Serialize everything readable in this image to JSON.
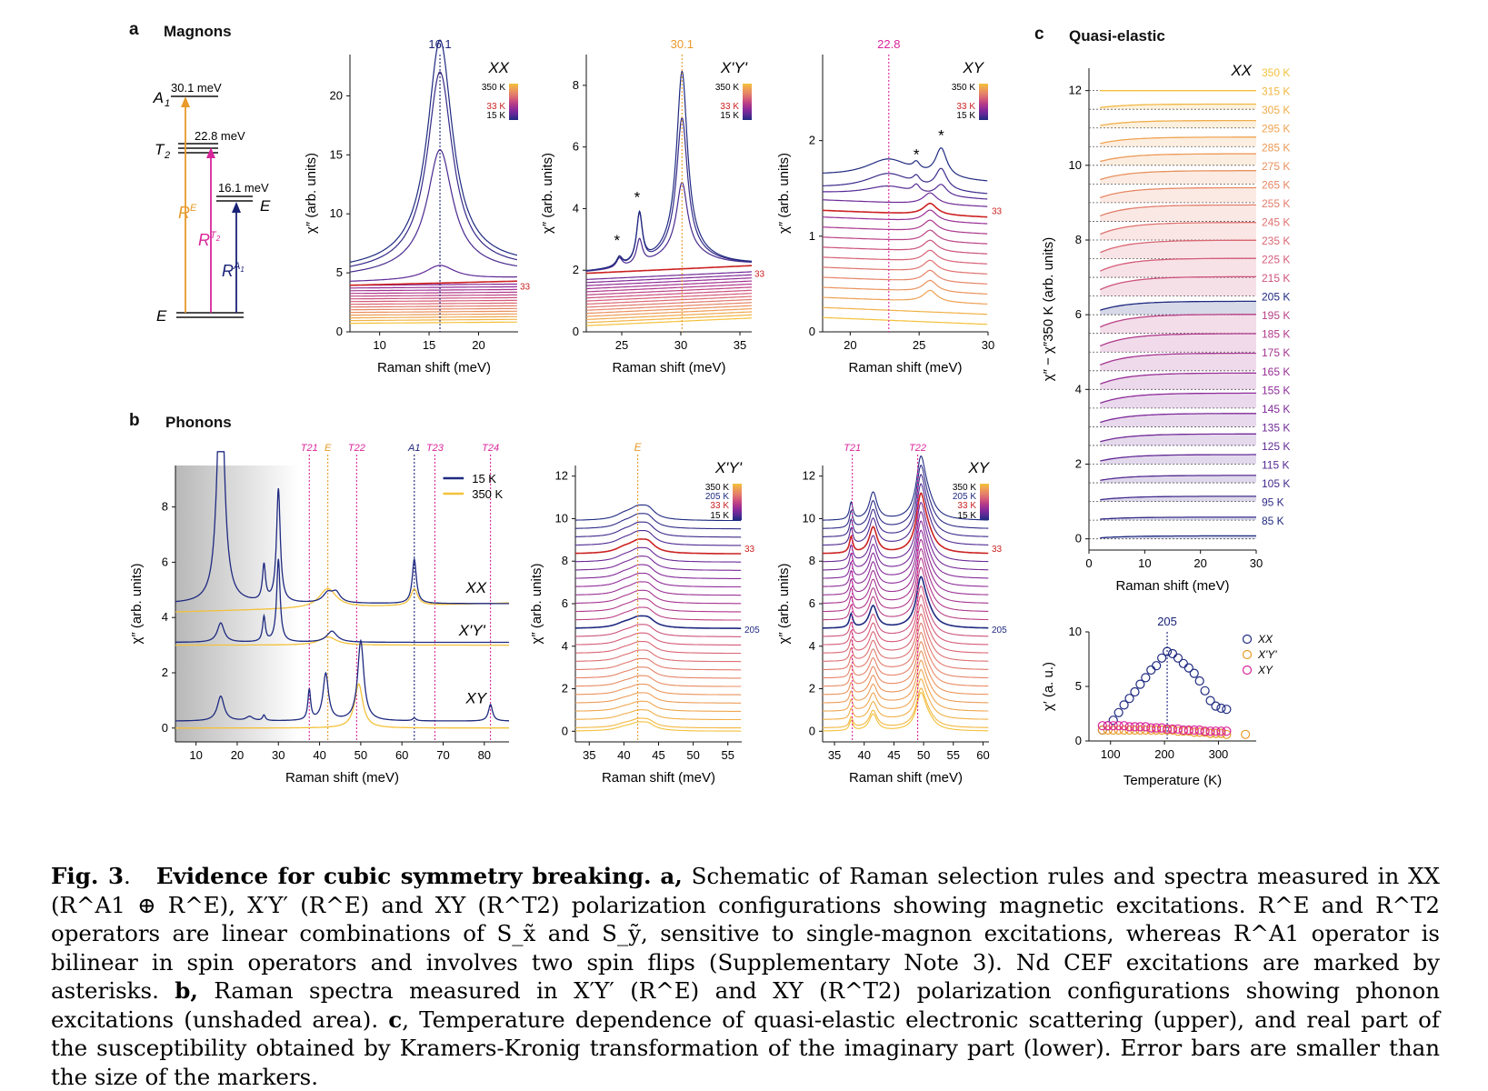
{
  "panel_labels": {
    "a": "a",
    "b": "b",
    "c": "c"
  },
  "panel_titles": {
    "a": "Magnons",
    "b": "Phonons",
    "c": "Quasi-elastic"
  },
  "colors": {
    "low_T": "#1f2a80",
    "mid_T": "#8a2a9a",
    "red_33K": "#cc2222",
    "high_T": "#f3c13a",
    "orange": "#e89a2a",
    "magenta": "#d9259a",
    "navy": "#1a2277"
  },
  "schematic": {
    "levels": [
      {
        "state": "A1",
        "energy_label": "30.1 meV"
      },
      {
        "state": "T2",
        "energy_label": "22.8 meV"
      },
      {
        "state": "E",
        "energy_label": "16.1 meV"
      },
      {
        "state": "E",
        "energy_label": ""
      }
    ],
    "operators": [
      "R^E",
      "R^T2",
      "R^A1"
    ]
  },
  "chart_data": [
    {
      "id": "a-XX",
      "type": "line",
      "title": "XX",
      "xlabel": "Raman shift (meV)",
      "ylabel": "χ″ (arb. units)",
      "xlim": [
        7,
        24
      ],
      "ylim": [
        0,
        23.5
      ],
      "xticks": [
        10,
        15,
        20
      ],
      "yticks": [
        0,
        5,
        10,
        15,
        20
      ],
      "marker_line": {
        "x": 16.1,
        "label": "16.1"
      },
      "side_label": "33",
      "legend": {
        "top": "350 K",
        "mid": "33 K",
        "bottom": "15 K"
      },
      "series_count": 20,
      "peak_center": 16.1
    },
    {
      "id": "a-X'Y'",
      "type": "line",
      "title": "X'Y'",
      "xlabel": "Raman shift (meV)",
      "ylabel": "χ″ (arb. units)",
      "xlim": [
        22,
        36
      ],
      "ylim": [
        0,
        9
      ],
      "xticks": [
        25,
        30,
        35
      ],
      "yticks": [
        0,
        2,
        4,
        6,
        8
      ],
      "marker_line": {
        "x": 30.1,
        "label": "30.1"
      },
      "side_label": "33",
      "legend": {
        "top": "350 K",
        "mid": "33 K",
        "bottom": "15 K"
      },
      "asterisks": [
        24.8,
        26.5
      ],
      "series_count": 20,
      "peak_center": 30.1
    },
    {
      "id": "a-XY",
      "type": "line",
      "title": "XY",
      "xlabel": "Raman shift (meV)",
      "ylabel": "χ″ (arb. units)",
      "xlim": [
        18,
        30
      ],
      "ylim": [
        0,
        2.9
      ],
      "xticks": [
        20,
        25,
        30
      ],
      "yticks": [
        0,
        1,
        2
      ],
      "marker_line": {
        "x": 22.8,
        "label": "22.8"
      },
      "side_label": "33",
      "legend": {
        "top": "350 K",
        "mid": "33 K",
        "bottom": "15 K"
      },
      "asterisks": [
        24.8,
        26.6
      ],
      "series_count": 16
    },
    {
      "id": "b-overview",
      "type": "line",
      "xlabel": "Raman shift (meV)",
      "ylabel": "χ″ (arb. units)",
      "xlim": [
        5,
        86
      ],
      "ylim": [
        -0.5,
        9.5
      ],
      "xticks": [
        10,
        20,
        30,
        40,
        50,
        60,
        70,
        80
      ],
      "yticks": [
        0,
        2,
        4,
        6,
        8
      ],
      "legend": [
        {
          "name": "15 K",
          "color": "#1f2a80"
        },
        {
          "name": "350 K",
          "color": "#f3c13a"
        }
      ],
      "curve_labels": [
        "XX",
        "X'Y'",
        "XY"
      ],
      "mode_lines": [
        {
          "label": "T2 1",
          "x": 37.5
        },
        {
          "label": "E",
          "x": 42
        },
        {
          "label": "T2 2",
          "x": 49
        },
        {
          "label": "A1",
          "x": 63
        },
        {
          "label": "T2 3",
          "x": 68
        },
        {
          "label": "T2 4",
          "x": 81.5
        }
      ]
    },
    {
      "id": "b-X'Y'",
      "type": "line",
      "title": "X'Y'",
      "xlabel": "Raman shift (meV)",
      "ylabel": "χ″ (arb. units)",
      "xlim": [
        33,
        57
      ],
      "ylim": [
        -0.5,
        12.5
      ],
      "xticks": [
        35,
        40,
        45,
        50,
        55
      ],
      "yticks": [
        0,
        2,
        4,
        6,
        8,
        10,
        12
      ],
      "marker_line": {
        "x": 42,
        "label": "E"
      },
      "side_labels": [
        "33",
        "205"
      ],
      "legend": {
        "top": "350 K",
        "l205": "205 K",
        "mid": "33 K",
        "bottom": "15 K"
      },
      "series_count": 27
    },
    {
      "id": "b-XY",
      "type": "line",
      "title": "XY",
      "xlabel": "Raman shift (meV)",
      "ylabel": "χ″ (arb. units)",
      "xlim": [
        33,
        61
      ],
      "ylim": [
        -0.5,
        12.5
      ],
      "xticks": [
        35,
        40,
        45,
        50,
        55,
        60
      ],
      "yticks": [
        0,
        2,
        4,
        6,
        8,
        10,
        12
      ],
      "mode_lines": [
        {
          "label": "T2 1",
          "x": 38
        },
        {
          "label": "T2 2",
          "x": 49
        }
      ],
      "side_labels": [
        "33",
        "205"
      ],
      "legend": {
        "top": "350 K",
        "l205": "205 K",
        "mid": "33 K",
        "bottom": "15 K"
      },
      "series_count": 27
    },
    {
      "id": "c-upper",
      "type": "line",
      "title": "XX",
      "xlabel": "Raman shift (meV)",
      "ylabel": "χ″ − χ″350 K (arb. units)",
      "xlim": [
        0,
        30
      ],
      "ylim": [
        -0.3,
        12.6
      ],
      "xticks": [
        0,
        10,
        20,
        30
      ],
      "yticks": [
        0,
        2,
        4,
        6,
        8,
        10,
        12
      ],
      "temperatures": [
        "350 K",
        "315 K",
        "305 K",
        "295 K",
        "285 K",
        "275 K",
        "265 K",
        "255 K",
        "245 K",
        "235 K",
        "225 K",
        "215 K",
        "205 K",
        "195 K",
        "185 K",
        "175 K",
        "165 K",
        "155 K",
        "145 K",
        "135 K",
        "125 K",
        "115 K",
        "105 K",
        "95 K",
        "85 K"
      ]
    },
    {
      "id": "c-lower",
      "type": "scatter",
      "xlabel": "Temperature (K)",
      "ylabel": "χ′ (a. u.)",
      "xlim": [
        60,
        370
      ],
      "ylim": [
        0,
        10
      ],
      "xticks": [
        100,
        200,
        300
      ],
      "yticks": [
        0,
        5,
        10
      ],
      "marker_line": {
        "x": 205,
        "label": "205"
      },
      "series": [
        {
          "name": "XX",
          "color": "#1f2a80",
          "x": [
            85,
            95,
            105,
            115,
            125,
            135,
            145,
            155,
            165,
            175,
            185,
            195,
            205,
            215,
            225,
            235,
            245,
            255,
            265,
            275,
            285,
            295,
            305,
            315
          ],
          "y": [
            1.0,
            1.4,
            1.9,
            2.6,
            3.3,
            3.9,
            4.5,
            5.2,
            5.8,
            6.5,
            6.9,
            7.6,
            8.2,
            8.0,
            7.6,
            7.1,
            6.7,
            6.2,
            5.5,
            4.6,
            3.7,
            3.2,
            3.0,
            2.9
          ]
        },
        {
          "name": "X'Y'",
          "color": "#e89a2a",
          "x": [
            85,
            95,
            105,
            115,
            125,
            135,
            145,
            155,
            165,
            175,
            185,
            195,
            205,
            215,
            225,
            235,
            245,
            255,
            265,
            275,
            285,
            295,
            305,
            315,
            350
          ],
          "y": [
            1.0,
            1.0,
            1.0,
            1.0,
            1.0,
            1.0,
            1.0,
            1.0,
            1.0,
            1.0,
            1.0,
            1.0,
            1.0,
            1.0,
            0.9,
            0.9,
            0.9,
            0.8,
            0.8,
            0.8,
            0.7,
            0.7,
            0.7,
            0.6,
            0.6
          ]
        },
        {
          "name": "XY",
          "color": "#d9259a",
          "x": [
            85,
            95,
            105,
            115,
            125,
            135,
            145,
            155,
            165,
            175,
            185,
            195,
            205,
            215,
            225,
            235,
            245,
            255,
            265,
            275,
            285,
            295,
            305,
            315
          ],
          "y": [
            1.4,
            1.4,
            1.4,
            1.4,
            1.4,
            1.3,
            1.3,
            1.3,
            1.3,
            1.2,
            1.2,
            1.2,
            1.1,
            1.1,
            1.1,
            1.0,
            1.0,
            1.0,
            1.0,
            0.9,
            0.9,
            0.9,
            0.9,
            0.9
          ]
        }
      ]
    }
  ],
  "caption": {
    "figno": "Fig. 3",
    "title": "Evidence for cubic symmetry breaking.",
    "a_label": "a,",
    "a_text": "Schematic of Raman selection rules and spectra measured in XX (R^A1 ⊕ R^E), X′Y′ (R^E) and XY (R^T2) polarization configurations showing magnetic excitations. R^E and R^T2 operators are linear combinations of S_x̃ and S_ỹ, sensitive to single-magnon excitations, whereas R^A1 operator is bilinear in spin operators and involves two spin flips (Supplementary Note 3). Nd CEF excitations are marked by asterisks.",
    "b_label": "b,",
    "b_text": "Raman spectra measured in X′Y′ (R^E) and XY (R^T2) polarization configurations showing phonon excitations (unshaded area).",
    "c_label": "c",
    "c_text": ", Temperature dependence of quasi-elastic electronic scattering (upper), and real part of the susceptibility obtained by Kramers-Kronig transformation of the imaginary part (lower). Error bars are smaller than the size of the markers."
  }
}
